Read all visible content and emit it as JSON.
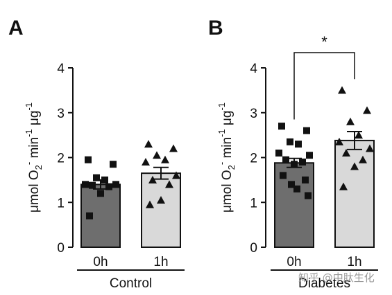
{
  "colors": {
    "bar_0h": "#6e6e6e",
    "bar_1h": "#d9d9d9",
    "axis": "#111111",
    "marker": "#111111"
  },
  "chart_data": [
    {
      "type": "bar",
      "panel": "A",
      "group_label": "Control",
      "ylabel": {
        "mu": "μmol O",
        "sub": "2",
        "sup": "-",
        "tail": " min",
        "sup2": "-1",
        "mid": " μg",
        "sup3": "-1"
      },
      "ylim": [
        0,
        4
      ],
      "yticks": [
        0,
        1,
        2,
        3,
        4
      ],
      "categories": [
        "0h",
        "1h"
      ],
      "values": [
        1.4,
        1.65
      ],
      "errors": [
        0.1,
        0.13
      ],
      "markers": [
        "square",
        "triangle"
      ],
      "points": [
        [
          1.95,
          1.85,
          1.55,
          1.5,
          1.4,
          1.4,
          1.38,
          1.35,
          1.2,
          0.7
        ],
        [
          2.3,
          2.2,
          2.05,
          1.95,
          1.9,
          1.6,
          1.5,
          1.4,
          1.05,
          0.95
        ]
      ],
      "significance": null
    },
    {
      "type": "bar",
      "panel": "B",
      "group_label": "Diabetes",
      "ylabel": {
        "mu": "μmol O",
        "sub": "2",
        "sup": "-",
        "tail": " min",
        "sup2": "-1",
        "mid": " μg",
        "sup3": "-1"
      },
      "ylim": [
        0,
        4
      ],
      "yticks": [
        0,
        1,
        2,
        3,
        4
      ],
      "categories": [
        "0h",
        "1h"
      ],
      "values": [
        1.88,
        2.38
      ],
      "errors": [
        0.1,
        0.2
      ],
      "markers": [
        "square",
        "triangle"
      ],
      "points": [
        [
          2.7,
          2.6,
          2.35,
          2.3,
          2.1,
          2.05,
          1.95,
          1.9,
          1.85,
          1.6,
          1.5,
          1.4,
          1.3,
          1.15
        ],
        [
          3.5,
          3.05,
          2.8,
          2.5,
          2.35,
          2.2,
          2.1,
          1.95,
          1.8,
          1.35
        ]
      ],
      "significance": "*"
    }
  ],
  "watermark": "知乎 @中肽生化"
}
